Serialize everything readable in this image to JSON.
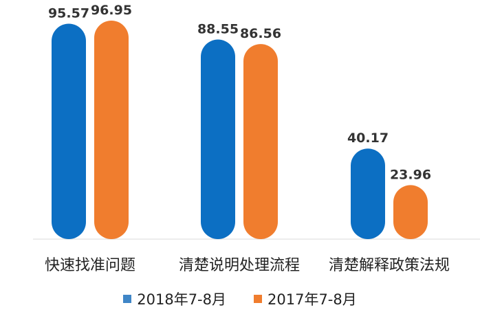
{
  "chart_data": {
    "type": "bar",
    "categories": [
      "快速找准问题",
      "清楚说明处理流程",
      "清楚解释政策法规"
    ],
    "series": [
      {
        "name": "2018年7-8月",
        "color": "#0C6FC3",
        "values": [
          95.57,
          88.55,
          40.17
        ]
      },
      {
        "name": "2017年7-8月",
        "color": "#F07D2E",
        "values": [
          96.95,
          86.56,
          23.96
        ]
      }
    ],
    "ylim": [
      0,
      100
    ],
    "grid": false,
    "legend_position": "bottom",
    "bar_style": "rounded-pill"
  }
}
